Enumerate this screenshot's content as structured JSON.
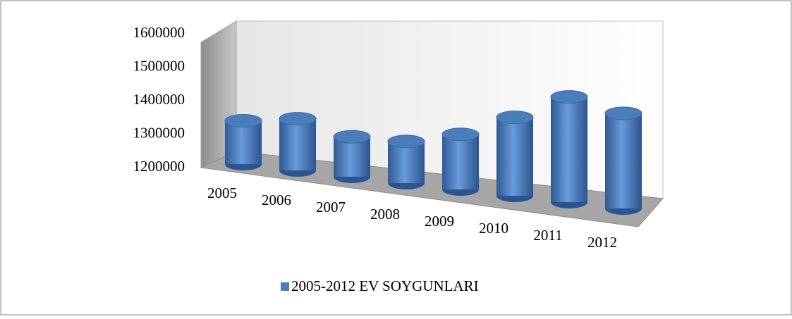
{
  "chart_data": {
    "type": "bar3d",
    "categories": [
      "2005",
      "2006",
      "2007",
      "2008",
      "2009",
      "2010",
      "2011",
      "2012"
    ],
    "series": [
      {
        "name": "2005-2012 EV SOYGUNLARI",
        "color": "#4a7ebb",
        "values": [
          1340000,
          1365000,
          1330000,
          1335000,
          1375000,
          1445000,
          1525000,
          1495000
        ]
      }
    ],
    "ylim": [
      1200000,
      1600000
    ],
    "yticks": [
      1200000,
      1300000,
      1400000,
      1500000,
      1600000
    ],
    "legend": "bottom"
  }
}
